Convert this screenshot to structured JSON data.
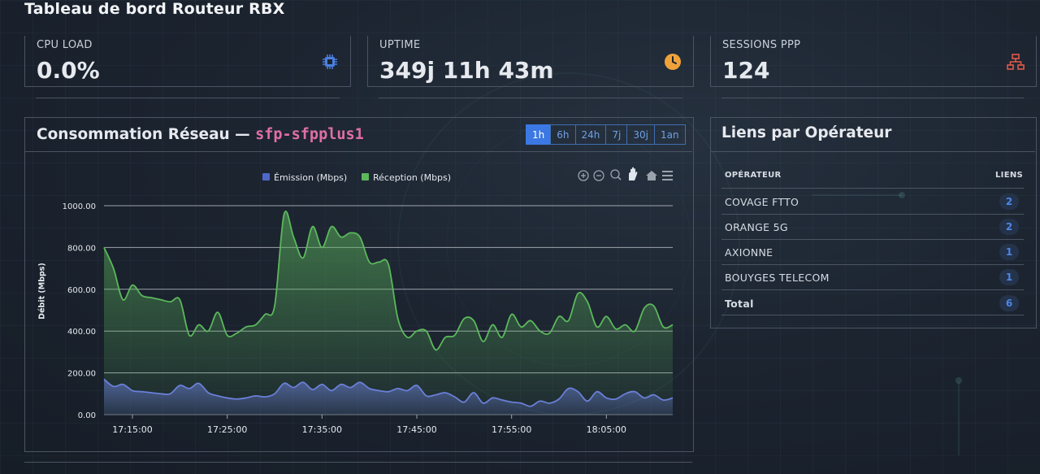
{
  "page_title": "Tableau de bord Routeur RBX",
  "stats": [
    {
      "label": "CPU LOAD",
      "value": "0.0%",
      "icon": "cpu-icon",
      "color": "#4a7fe0"
    },
    {
      "label": "UPTIME",
      "value": "349j 11h 43m",
      "icon": "clock-icon",
      "color": "#f0a23a"
    },
    {
      "label": "SESSIONS PPP",
      "value": "124",
      "icon": "network-icon",
      "color": "#e05a4a"
    }
  ],
  "network": {
    "title": "Consommation Réseau — ",
    "interface": "sfp-sfpplus1",
    "ranges": [
      "1h",
      "6h",
      "24h",
      "7j",
      "30j",
      "1an"
    ],
    "active_range": "1h"
  },
  "operators": {
    "title": "Liens par Opérateur",
    "col_operator": "OPÉRATEUR",
    "col_links": "LIENS",
    "rows": [
      {
        "name": "COVAGE FTTO",
        "count": "2"
      },
      {
        "name": "ORANGE 5G",
        "count": "2"
      },
      {
        "name": "AXIONNE",
        "count": "1"
      },
      {
        "name": "BOUYGES TELECOM",
        "count": "1"
      }
    ],
    "total": {
      "name": "Total",
      "count": "6"
    }
  },
  "chart_data": {
    "type": "area",
    "ylabel": "Débit (Mbps)",
    "ylim": [
      0,
      1000
    ],
    "y_ticks": [
      "0.00",
      "200.00",
      "400.00",
      "600.00",
      "800.00",
      "1000.00"
    ],
    "x_ticks": [
      "17:15:00",
      "17:25:00",
      "17:35:00",
      "17:45:00",
      "17:55:00",
      "18:05:00"
    ],
    "x_start": "17:12:00",
    "x_end": "18:12:00",
    "grid": true,
    "legend_position": "top",
    "series": [
      {
        "name": "Émission (Mbps)",
        "color": "#4f68c8",
        "x": [
          "17:12",
          "17:13",
          "17:14",
          "17:15",
          "17:16",
          "17:17",
          "17:18",
          "17:19",
          "17:20",
          "17:21",
          "17:22",
          "17:23",
          "17:24",
          "17:25",
          "17:26",
          "17:27",
          "17:28",
          "17:29",
          "17:30",
          "17:31",
          "17:32",
          "17:33",
          "17:34",
          "17:35",
          "17:36",
          "17:37",
          "17:38",
          "17:39",
          "17:40",
          "17:41",
          "17:42",
          "17:43",
          "17:44",
          "17:45",
          "17:46",
          "17:47",
          "17:48",
          "17:49",
          "17:50",
          "17:51",
          "17:52",
          "17:53",
          "17:54",
          "17:55",
          "17:56",
          "17:57",
          "17:58",
          "17:59",
          "18:00",
          "18:01",
          "18:02",
          "18:03",
          "18:04",
          "18:05",
          "18:06",
          "18:07",
          "18:08",
          "18:09",
          "18:10",
          "18:11",
          "18:12"
        ],
        "values": [
          170,
          135,
          145,
          115,
          110,
          105,
          100,
          100,
          140,
          125,
          150,
          105,
          90,
          80,
          75,
          80,
          90,
          85,
          100,
          150,
          130,
          155,
          120,
          145,
          115,
          145,
          130,
          155,
          125,
          115,
          110,
          125,
          115,
          140,
          90,
          95,
          105,
          85,
          60,
          105,
          55,
          80,
          70,
          60,
          55,
          40,
          65,
          55,
          75,
          125,
          110,
          65,
          110,
          80,
          75,
          100,
          110,
          80,
          95,
          70,
          80
        ]
      },
      {
        "name": "Réception (Mbps)",
        "color": "#5cb85c",
        "x": [
          "17:12",
          "17:13",
          "17:14",
          "17:15",
          "17:16",
          "17:17",
          "17:18",
          "17:19",
          "17:20",
          "17:21",
          "17:22",
          "17:23",
          "17:24",
          "17:25",
          "17:26",
          "17:27",
          "17:28",
          "17:29",
          "17:30",
          "17:31",
          "17:32",
          "17:33",
          "17:34",
          "17:35",
          "17:36",
          "17:37",
          "17:38",
          "17:39",
          "17:40",
          "17:41",
          "17:42",
          "17:43",
          "17:44",
          "17:45",
          "17:46",
          "17:47",
          "17:48",
          "17:49",
          "17:50",
          "17:51",
          "17:52",
          "17:53",
          "17:54",
          "17:55",
          "17:56",
          "17:57",
          "17:58",
          "17:59",
          "18:00",
          "18:01",
          "18:02",
          "18:03",
          "18:04",
          "18:05",
          "18:06",
          "18:07",
          "18:08",
          "18:09",
          "18:10",
          "18:11",
          "18:12"
        ],
        "values": [
          800,
          700,
          550,
          620,
          570,
          560,
          550,
          540,
          550,
          380,
          430,
          400,
          490,
          380,
          390,
          420,
          430,
          480,
          520,
          960,
          850,
          750,
          900,
          800,
          900,
          850,
          870,
          850,
          730,
          730,
          720,
          460,
          370,
          400,
          400,
          310,
          370,
          380,
          460,
          450,
          350,
          430,
          370,
          480,
          420,
          450,
          400,
          390,
          470,
          450,
          580,
          540,
          420,
          470,
          410,
          430,
          400,
          510,
          520,
          420,
          430
        ]
      }
    ]
  }
}
